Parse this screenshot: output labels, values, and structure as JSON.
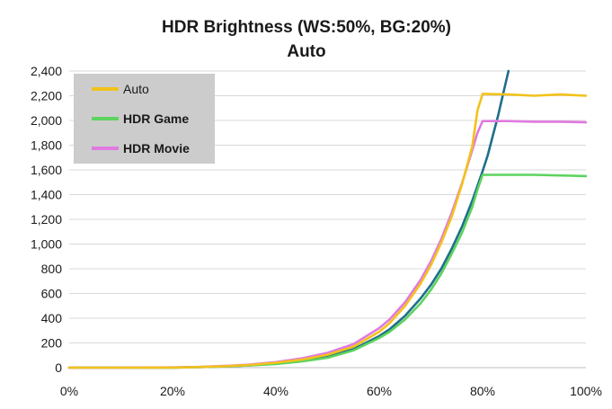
{
  "chart_data": {
    "type": "line",
    "title": "HDR Brightness (WS:50%, BG:20%)",
    "subtitle": "Auto",
    "xlabel": "",
    "ylabel": "",
    "xlim": [
      0,
      100
    ],
    "ylim": [
      0,
      2400
    ],
    "x_ticks": [
      0,
      20,
      40,
      60,
      80,
      100
    ],
    "x_tick_labels": [
      "0%",
      "20%",
      "40%",
      "60%",
      "80%",
      "100%"
    ],
    "y_ticks": [
      0,
      200,
      400,
      600,
      800,
      1000,
      1200,
      1400,
      1600,
      1800,
      2000,
      2200,
      2400
    ],
    "y_tick_labels": [
      "0",
      "200",
      "400",
      "600",
      "800",
      "1,000",
      "1,200",
      "1,400",
      "1,600",
      "1,800",
      "2,000",
      "2,200",
      "2,400"
    ],
    "grid": "horizontal",
    "legend": "top-left",
    "series": [
      {
        "name": "Auto",
        "color": "#f2c21b",
        "in_legend": true,
        "x": [
          0,
          10,
          20,
          25,
          30,
          35,
          40,
          45,
          50,
          55,
          60,
          62,
          65,
          68,
          70,
          72,
          74,
          76,
          78,
          79,
          80,
          85,
          90,
          95,
          100
        ],
        "y": [
          0,
          0,
          1,
          5,
          12,
          22,
          40,
          65,
          105,
          170,
          290,
          360,
          500,
          680,
          830,
          1010,
          1220,
          1480,
          1790,
          2080,
          2215,
          2210,
          2200,
          2210,
          2200
        ]
      },
      {
        "name": "HDR Game",
        "color": "#5dd35f",
        "in_legend": true,
        "x": [
          0,
          10,
          20,
          25,
          30,
          35,
          40,
          45,
          50,
          55,
          60,
          62,
          65,
          68,
          70,
          72,
          74,
          76,
          78,
          79,
          80,
          85,
          90,
          95,
          100
        ],
        "y": [
          0,
          0,
          1,
          4,
          10,
          18,
          30,
          50,
          80,
          140,
          240,
          290,
          390,
          520,
          630,
          760,
          920,
          1090,
          1300,
          1440,
          1560,
          1560,
          1560,
          1555,
          1550
        ]
      },
      {
        "name": "HDR Movie",
        "color": "#e07ae0",
        "in_legend": true,
        "x": [
          0,
          10,
          20,
          25,
          30,
          35,
          40,
          45,
          50,
          55,
          60,
          62,
          65,
          68,
          70,
          72,
          74,
          76,
          78,
          79,
          80,
          85,
          90,
          95,
          100
        ],
        "y": [
          0,
          0,
          2,
          6,
          14,
          25,
          45,
          75,
          120,
          190,
          320,
          390,
          530,
          710,
          860,
          1040,
          1250,
          1490,
          1760,
          1900,
          1995,
          1995,
          1990,
          1990,
          1985
        ]
      },
      {
        "name": "",
        "color": "#1f6f8b",
        "in_legend": false,
        "x": [
          0,
          10,
          20,
          25,
          30,
          35,
          40,
          45,
          50,
          55,
          60,
          62,
          65,
          68,
          70,
          72,
          74,
          76,
          78,
          80,
          81,
          82,
          83,
          84,
          85
        ],
        "y": [
          0,
          0,
          1,
          4,
          10,
          19,
          32,
          53,
          88,
          150,
          255,
          310,
          420,
          560,
          670,
          800,
          960,
          1140,
          1350,
          1590,
          1720,
          1880,
          2040,
          2220,
          2400
        ]
      }
    ]
  }
}
